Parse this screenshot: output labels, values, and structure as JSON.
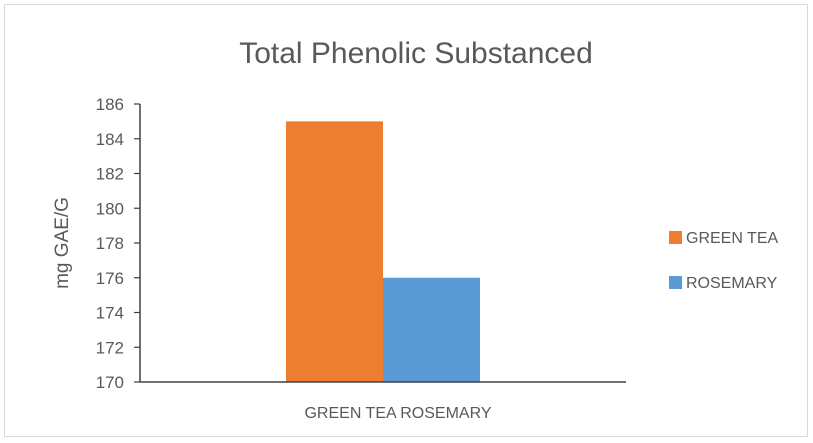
{
  "chart_data": {
    "type": "bar",
    "title": "Total Phenolic Substanced",
    "ylabel": "mg GAE/G",
    "xlabel": "",
    "categories": [
      "GREEN TEA ROSEMARY"
    ],
    "series": [
      {
        "name": "GREEN TEA",
        "values": [
          185
        ],
        "color": "#ED7D31"
      },
      {
        "name": "ROSEMARY",
        "values": [
          176
        ],
        "color": "#5B9BD5"
      }
    ],
    "ylim": [
      170,
      186
    ],
    "yticks": [
      "170",
      "172",
      "174",
      "176",
      "178",
      "180",
      "182",
      "184",
      "186"
    ],
    "grid": false,
    "legend_position": "right"
  }
}
